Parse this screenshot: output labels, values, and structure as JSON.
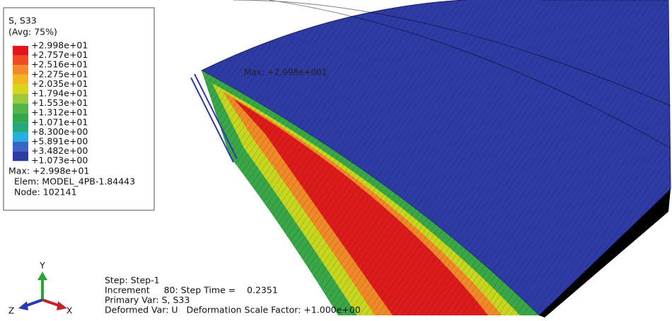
{
  "legend": {
    "title": "S, S33",
    "subtitle": "(Avg: 75%)",
    "labels": [
      "+2.998e+01",
      "+2.757e+01",
      "+2.516e+01",
      "+2.275e+01",
      "+2.035e+01",
      "+1.794e+01",
      "+1.553e+01",
      "+1.312e+01",
      "+1.071e+01",
      "+8.300e+00",
      "+5.891e+00",
      "+3.482e+00",
      "+1.073e+00"
    ],
    "colors": [
      "#e3141b",
      "#ef4a24",
      "#f5882a",
      "#f5b51f",
      "#d8d51c",
      "#9cc93b",
      "#52b547",
      "#2fa845",
      "#22a87a",
      "#25aee0",
      "#3a64c8",
      "#2c3c9f"
    ]
  },
  "max_info": [
    "Max: +2.998e+01",
    "Elem: MODEL_4PB-1.84443",
    "Node: 102141"
  ],
  "model_annotation": "Max: +2.998e+001",
  "triad": {
    "y": "Y",
    "z": "Z",
    "x": "X"
  },
  "status": [
    "Step: Step-1",
    "Increment     80: Step Time =    0.2351",
    "Primary Var: S, S33",
    "Deformed Var: U   Deformation Scale Factor: +1.000e+00"
  ]
}
